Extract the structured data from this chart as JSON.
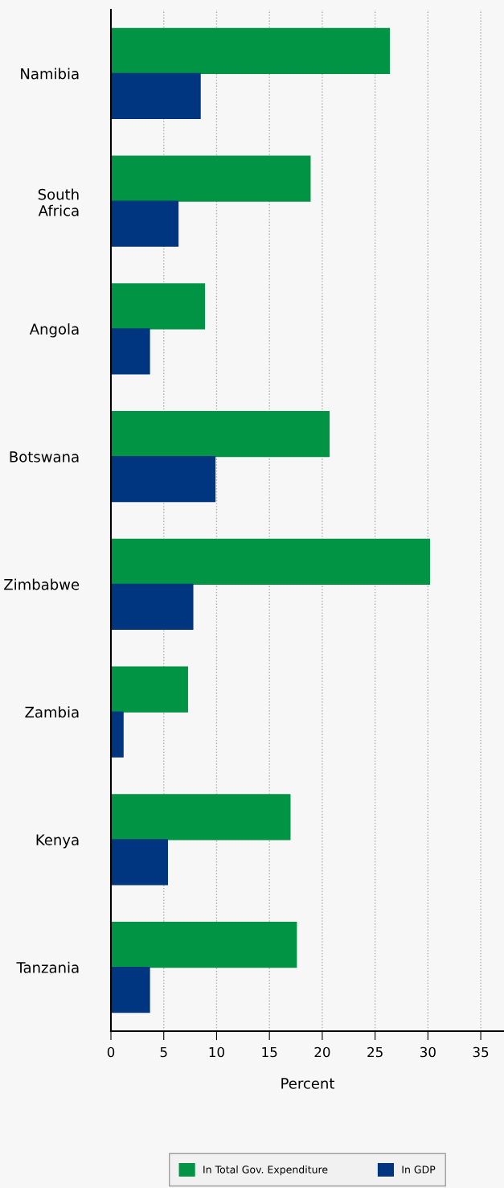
{
  "chart_data": {
    "type": "bar",
    "orientation": "horizontal",
    "categories": [
      "Namibia",
      "South Africa",
      "Angola",
      "Botswana",
      "Zimbabwe",
      "Zambia",
      "Kenya",
      "Tanzania"
    ],
    "series": [
      {
        "name": "In Total Gov. Expenditure",
        "color": "#009444",
        "values": [
          26.4,
          18.9,
          8.9,
          20.7,
          30.2,
          7.3,
          17.0,
          17.6
        ]
      },
      {
        "name": "In GDP",
        "color": "#003580",
        "values": [
          8.5,
          6.4,
          3.7,
          9.9,
          7.8,
          1.2,
          5.4,
          3.7
        ]
      }
    ],
    "xlabel": "Percent",
    "xlim": [
      0,
      37.2
    ],
    "xticks": [
      0,
      5,
      10,
      15,
      20,
      25,
      30,
      35
    ],
    "grid": "x",
    "legend": "bottom"
  }
}
